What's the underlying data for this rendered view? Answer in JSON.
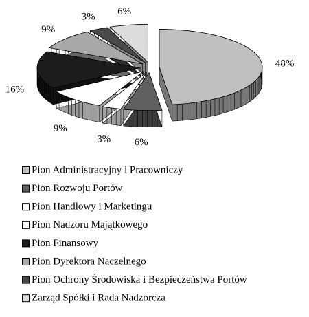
{
  "chart_data": {
    "type": "pie3d",
    "categories": [
      "Pion Administracyjny i Pracowniczy",
      "Pion Rozwoju Portów",
      "Pion Handlowy i Marketingu",
      "Pion Nadzoru Majątkowego",
      "Pion Finansowy",
      "Pion Dyrektora Naczelnego",
      "Pion Ochrony Środowiska i Bezpieczeństwa Portów",
      "Zarząd Spółki i Rada Nadzorcza"
    ],
    "values": [
      48,
      6,
      3,
      9,
      16,
      9,
      3,
      6
    ],
    "value_labels": [
      "48%",
      "6%",
      "3%",
      "9%",
      "16%",
      "9%",
      "3%",
      "6%"
    ],
    "colors": [
      "#c0c0c0",
      "#606060",
      "#ffffff",
      "#ffffff",
      "#1c1c1c",
      "#a8a8a8",
      "#4a4a4a",
      "#dcdcdc"
    ],
    "legend": "bottom"
  }
}
